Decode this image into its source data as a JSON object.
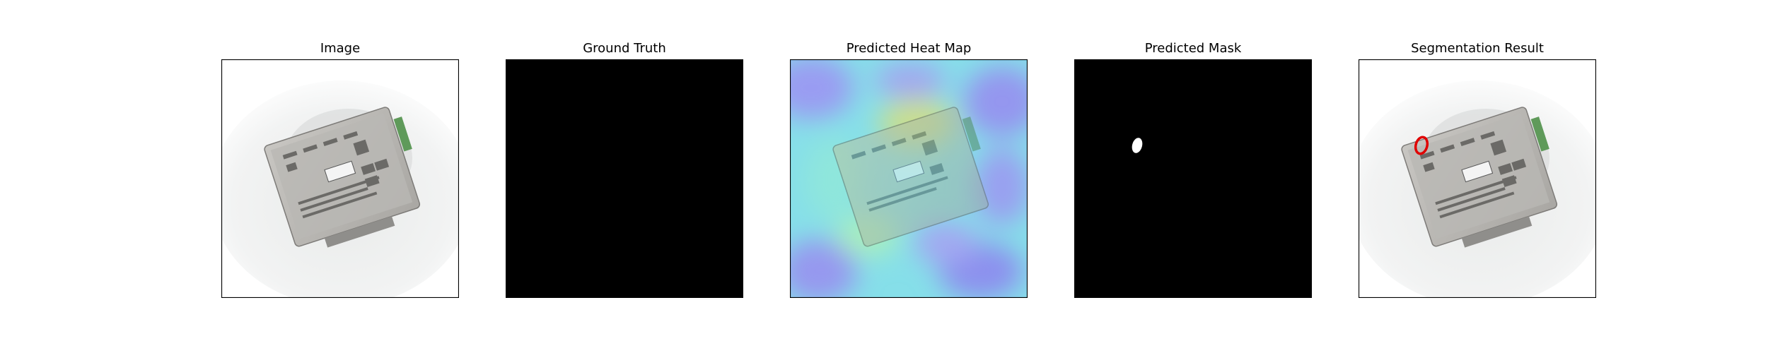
{
  "panels": [
    {
      "title": "Image"
    },
    {
      "title": "Ground Truth"
    },
    {
      "title": "Predicted Heat Map"
    },
    {
      "title": "Predicted Mask"
    },
    {
      "title": "Segmentation Result"
    }
  ],
  "colors": {
    "frame": "#000000",
    "mask_background": "#000000",
    "mask_blob": "#ffffff",
    "result_outline": "#e00000",
    "heat_cool": "#8a8cf0",
    "heat_mid": "#7de8e6",
    "heat_warm": "#c8e08a"
  }
}
